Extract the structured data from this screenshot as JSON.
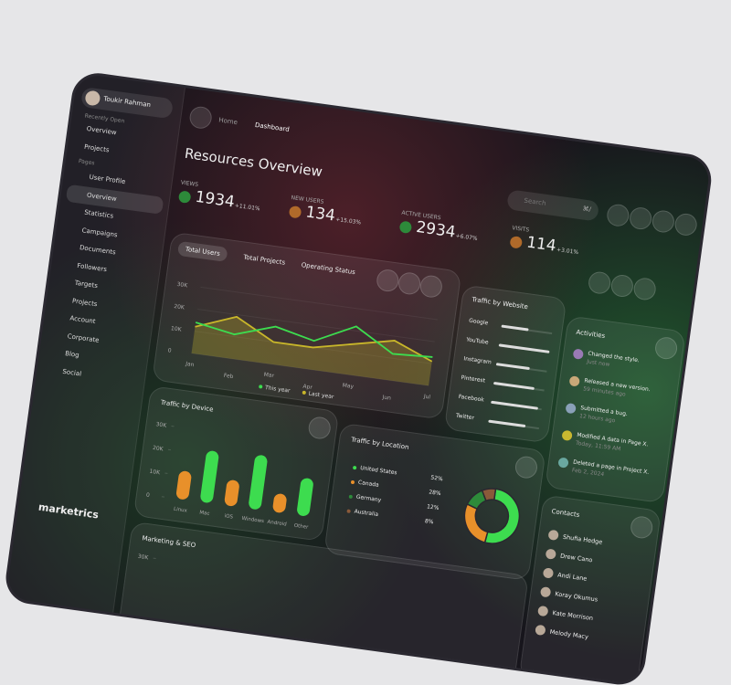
{
  "sidebar": {
    "user": "Toukir Rahman",
    "recent_label": "Recently Open",
    "recent": [
      "Overview",
      "Projects"
    ],
    "pages_label": "Pages",
    "pages": [
      "User Profile",
      "Overview",
      "Statistics",
      "Campaigns",
      "Documents",
      "Followers",
      "Targets",
      "Projects",
      "Account",
      "Corporate",
      "Blog",
      "Social"
    ],
    "brand": "marketrics"
  },
  "header": {
    "breadcrumb": [
      "Home",
      "Dashboard"
    ],
    "title": "Resources Overview",
    "search_placeholder": "Search",
    "shortcut": "⌘/"
  },
  "stats": [
    {
      "label": "VIEWS",
      "value": 1934,
      "change": "+11.01%"
    },
    {
      "label": "NEW USERS",
      "value": 134,
      "change": "+15.03%"
    },
    {
      "label": "ACTIVE USERS",
      "value": 2934,
      "change": "+6.07%"
    },
    {
      "label": "VISITS",
      "value": 114,
      "change": "+3.01%"
    }
  ],
  "users_chart": {
    "type": "line",
    "tabs": [
      "Total Users",
      "Total Projects",
      "Operating Status"
    ],
    "categories": [
      "Jan",
      "Feb",
      "Mar",
      "Apr",
      "May",
      "Jun",
      "Jul"
    ],
    "series": [
      {
        "name": "This year",
        "color": "#3ddc4f",
        "values": [
          14000,
          11000,
          17000,
          13000,
          22000,
          12000,
          13000
        ]
      },
      {
        "name": "Last year",
        "color": "#c8b62a",
        "values": [
          12000,
          19000,
          10000,
          10000,
          14000,
          18000,
          11000
        ]
      }
    ],
    "ylim": [
      0,
      30000
    ],
    "yticks": [
      0,
      {
        "value": 10000,
        "label": "10K"
      },
      {
        "value": 20000,
        "label": "20K"
      },
      {
        "value": 30000,
        "label": "30K"
      }
    ]
  },
  "website_chart": {
    "type": "bar",
    "title": "Traffic by Website",
    "categories": [
      "Google",
      "YouTube",
      "Instagram",
      "Pinterest",
      "Facebook",
      "Twitter"
    ],
    "values": [
      40,
      75,
      50,
      60,
      70,
      55
    ]
  },
  "activities": {
    "title": "Activities",
    "items": [
      {
        "text": "Changed the style.",
        "time": "Just now"
      },
      {
        "text": "Released a new version.",
        "time": "59 minutes ago"
      },
      {
        "text": "Submitted a bug.",
        "time": "12 hours ago"
      },
      {
        "text": "Modified A data in Page X.",
        "time": "Today, 11:59 AM"
      },
      {
        "text": "Deleted a page in Project X.",
        "time": "Feb 2, 2024"
      }
    ]
  },
  "device_chart": {
    "type": "bar",
    "title": "Traffic by Device",
    "categories": [
      "Linux",
      "Mac",
      "iOS",
      "Windows",
      "Android",
      "Other"
    ],
    "values": [
      12000,
      22000,
      11000,
      23000,
      8000,
      16000
    ],
    "colors": [
      "#e8902a",
      "#3ddc4f",
      "#e8902a",
      "#3ddc4f",
      "#e8902a",
      "#3ddc4f"
    ],
    "ylim": [
      0,
      30000
    ],
    "yticks": [
      0,
      {
        "value": 10000,
        "label": "10K"
      },
      {
        "value": 20000,
        "label": "20K"
      },
      {
        "value": 30000,
        "label": "30K"
      }
    ]
  },
  "location_chart": {
    "type": "donut",
    "title": "Traffic by Location",
    "categories": [
      "United States",
      "Canada",
      "Germany",
      "Australia"
    ],
    "values": [
      52,
      28,
      12,
      8
    ],
    "value_labels": [
      "52%",
      "28%",
      "12%",
      "8%"
    ],
    "colors": [
      "#3ddc4f",
      "#e8902a",
      "#2d8a3a",
      "#8a5a3a"
    ]
  },
  "contacts": {
    "title": "Contacts",
    "names": [
      "Shufia Hedge",
      "Drew Cano",
      "Andi Lane",
      "Koray Okumus",
      "Kate Morrison",
      "Melody Macy"
    ]
  },
  "marketing_chart": {
    "title": "Marketing & SEO",
    "ylim": [
      0,
      30000
    ],
    "yticks": [
      {
        "value": 30000,
        "label": "30K"
      }
    ]
  }
}
